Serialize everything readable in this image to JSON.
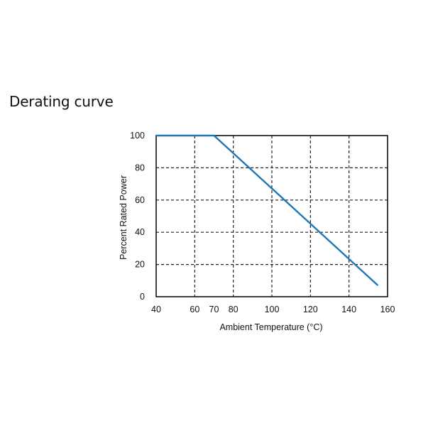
{
  "page": {
    "title": "Derating curve"
  },
  "chart_data": {
    "type": "line",
    "title": "Derating curve",
    "xlabel": "Ambient Temperature (°C)",
    "ylabel": "Percent Rated Power",
    "xlim": [
      40,
      160
    ],
    "ylim": [
      0,
      100
    ],
    "xticks": [
      40,
      60,
      70,
      80,
      100,
      120,
      140,
      160
    ],
    "xtick_labels": [
      "40",
      "60",
      "70",
      "80",
      "100",
      "120",
      "140",
      "160"
    ],
    "yticks": [
      0,
      20,
      40,
      60,
      80,
      100
    ],
    "ytick_labels": [
      "0",
      "20",
      "40",
      "60",
      "80",
      "100"
    ],
    "x_gridlines": [
      60,
      80,
      100,
      120,
      140
    ],
    "y_gridlines": [
      20,
      40,
      60,
      80
    ],
    "grid": true,
    "series": [
      {
        "x": [
          40,
          70,
          155
        ],
        "values": [
          100,
          100,
          7
        ],
        "color": "#1f77b4"
      }
    ]
  }
}
